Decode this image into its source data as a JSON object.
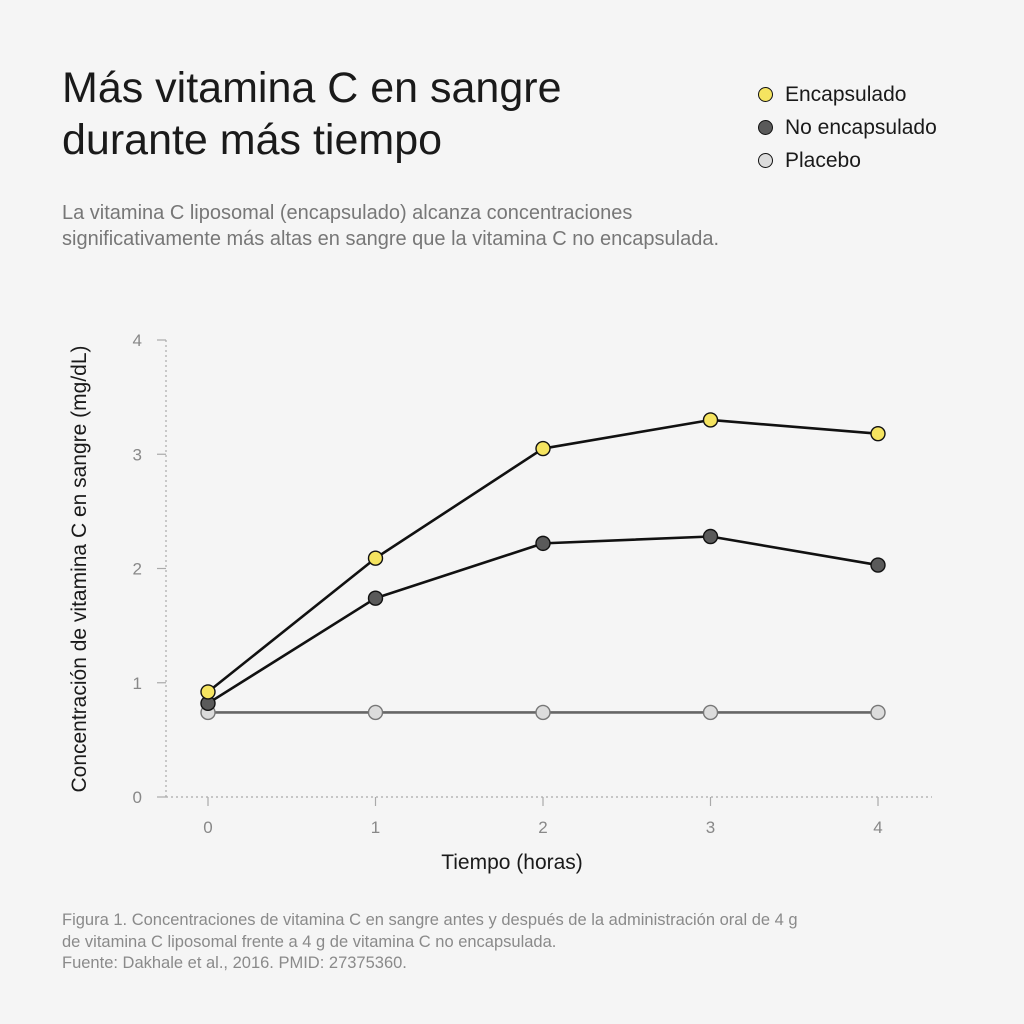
{
  "title": {
    "line1": "Más vitamina C en sangre",
    "line2": "durante más tiempo"
  },
  "subtitle": {
    "line1": "La vitamina C liposomal (encapsulado) alcanza concentraciones",
    "line2": "significativamente más altas en sangre que la vitamina C no encapsulada."
  },
  "legend": [
    {
      "label": "Encapsulado",
      "color": "#f5e460"
    },
    {
      "label": "No encapsulado",
      "color": "#5a5a5a"
    },
    {
      "label": "Placebo",
      "color": "#dcdcdc"
    }
  ],
  "caption": {
    "line1": "Figura 1. Concentraciones de vitamina C en sangre antes y después de la administración oral de 4 g",
    "line2": "de vitamina C liposomal frente a 4 g de vitamina C no encapsulada.",
    "line3": "Fuente: Dakhale et al., 2016. PMID: 27375360."
  },
  "chart_data": {
    "type": "line",
    "x": [
      0,
      1,
      2,
      3,
      4
    ],
    "xlabel": "Tiempo (horas)",
    "ylabel": "Concentración de vitamina C en sangre (mg/dL)",
    "xlim": [
      0,
      4
    ],
    "ylim": [
      0,
      4
    ],
    "xticks": [
      "0",
      "1",
      "2",
      "3",
      "4"
    ],
    "yticks": [
      "0",
      "1",
      "2",
      "3",
      "4"
    ],
    "grid": false,
    "legend_position": "top-right",
    "series": [
      {
        "name": "Encapsulado",
        "values": [
          0.92,
          2.09,
          3.05,
          3.3,
          3.18
        ],
        "color": "#f5e460",
        "line_color": "#111111"
      },
      {
        "name": "No encapsulado",
        "values": [
          0.82,
          1.74,
          2.22,
          2.28,
          2.03
        ],
        "color": "#5a5a5a",
        "line_color": "#111111"
      },
      {
        "name": "Placebo",
        "values": [
          0.74,
          0.74,
          0.74,
          0.74,
          0.74
        ],
        "color": "#dcdcdc",
        "line_color": "#666666"
      }
    ]
  }
}
